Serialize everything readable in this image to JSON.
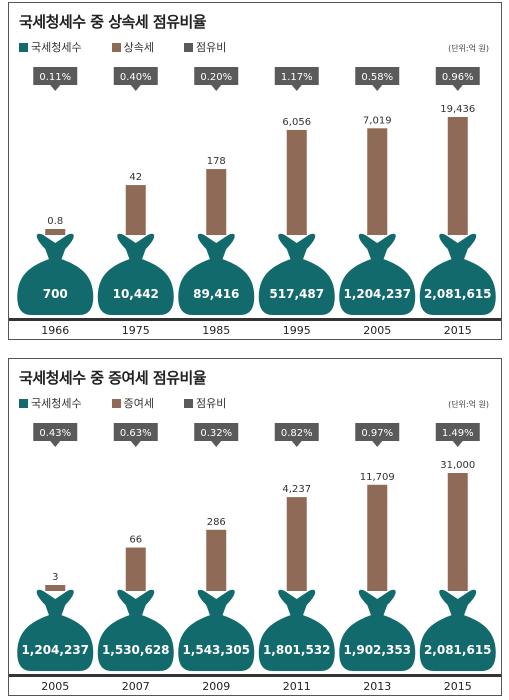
{
  "colors": {
    "tax": "#136a6c",
    "share_tax": "#8f6a57",
    "ratio": "#5a5a5a",
    "axis": "#333333"
  },
  "legend": {
    "total_tax": "국세청세수",
    "share_ratio": "점유비"
  },
  "chart_data": [
    {
      "type": "bar",
      "title": "국세청세수 중 상속세 점유비율",
      "unit": "(단위:억 원)",
      "legend_tax": "상속세",
      "categories": [
        "1966",
        "1975",
        "1985",
        "1995",
        "2005",
        "2015"
      ],
      "series": [
        {
          "name": "국세청세수",
          "values": [
            700,
            10442,
            89416,
            517487,
            1204237,
            2081615
          ],
          "labels": [
            "700",
            "10,442",
            "89,416",
            "517,487",
            "1,204,237",
            "2,081,615"
          ]
        },
        {
          "name": "상속세",
          "values": [
            0.8,
            42,
            178,
            6056,
            7019,
            19436
          ],
          "labels": [
            "0.8",
            "42",
            "178",
            "6,056",
            "7,019",
            "19,436"
          ]
        },
        {
          "name": "점유비",
          "values": [
            0.11,
            0.4,
            0.2,
            1.17,
            0.58,
            0.96
          ],
          "labels": [
            "0.11%",
            "0.40%",
            "0.20%",
            "1.17%",
            "0.58%",
            "0.96%"
          ]
        }
      ]
    },
    {
      "type": "bar",
      "title": "국세청세수 중 증여세 점유비율",
      "unit": "(단위:억 원)",
      "legend_tax": "증여세",
      "categories": [
        "2005",
        "2007",
        "2009",
        "2011",
        "2013",
        "2015"
      ],
      "series": [
        {
          "name": "국세청세수",
          "values": [
            1204237,
            1530628,
            1543305,
            1801532,
            1902353,
            2081615
          ],
          "labels": [
            "1,204,237",
            "1,530,628",
            "1,543,305",
            "1,801,532",
            "1,902,353",
            "2,081,615"
          ]
        },
        {
          "name": "증여세",
          "values": [
            3,
            66,
            286,
            4237,
            11709,
            31000
          ],
          "labels": [
            "3",
            "66",
            "286",
            "4,237",
            "11,709",
            "31,000"
          ]
        },
        {
          "name": "점유비",
          "values": [
            0.43,
            0.63,
            0.32,
            0.82,
            0.97,
            1.49
          ],
          "labels": [
            "0.43%",
            "0.63%",
            "0.32%",
            "0.82%",
            "0.97%",
            "1.49%"
          ]
        }
      ]
    }
  ]
}
